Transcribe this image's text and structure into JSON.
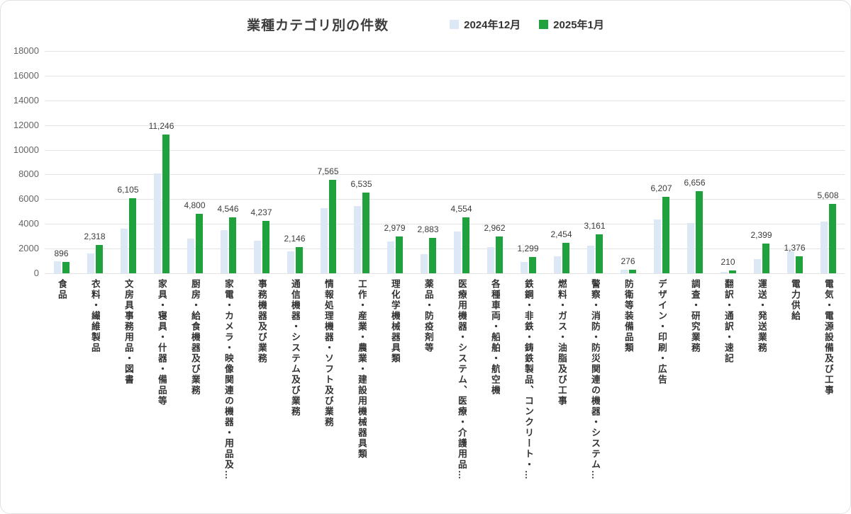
{
  "header": {
    "title": "業種カテゴリ別の件数"
  },
  "legend": [
    {
      "label": "2024年12月",
      "color": "#dce8f5"
    },
    {
      "label": "2025年1月",
      "color": "#1fa23e"
    }
  ],
  "chart_data": {
    "type": "bar",
    "title": "業種カテゴリ別の件数",
    "xlabel": "",
    "ylabel": "",
    "ylim": [
      0,
      18000
    ],
    "y_ticks": [
      0,
      2000,
      4000,
      6000,
      8000,
      10000,
      12000,
      14000,
      16000,
      18000
    ],
    "grid": true,
    "legend_position": "top",
    "categories": [
      "食品",
      "衣料・繊維製品",
      "文房具事務用品・図書",
      "家具・寝具・什器・備品等",
      "厨房・給食機器及び業務",
      "家電・カメラ・映像関連の機器・用品及…",
      "事務機器及び業務",
      "通信機器・システム及び業務",
      "情報処理機器・ソフト及び業務",
      "工作・産業・農業・建設用機械器具類",
      "理化学機械器具類",
      "薬品・防疫剤等",
      "医療用機器・システム、医療・介護用品…",
      "各種車両・船舶・航空機",
      "鉄鋼・非鉄・鋳鉄製品、コンクリート・…",
      "燃料・ガス・油脂及び工事",
      "警察・消防・防災関連の機器・システム…",
      "防衛等装備品類",
      "デザイン・印刷・広告",
      "調査・研究業務",
      "翻訳・通訳・速記",
      "運送・発送業務",
      "電力供給",
      "電気・電源設備及び工事"
    ],
    "series": [
      {
        "name": "2024年12月",
        "color": "#dce8f5",
        "data_labels": false,
        "values": [
          1000,
          1620,
          3620,
          8100,
          2820,
          3480,
          2650,
          1760,
          5300,
          5420,
          2580,
          1540,
          3390,
          2100,
          930,
          1400,
          2240,
          290,
          4330,
          4080,
          110,
          1150,
          1760,
          4180
        ]
      },
      {
        "name": "2025年1月",
        "color": "#1fa23e",
        "data_labels": true,
        "values": [
          896,
          2318,
          6105,
          11246,
          4800,
          4546,
          4237,
          2146,
          7565,
          6535,
          2979,
          2883,
          4554,
          2962,
          1299,
          2454,
          3161,
          276,
          6207,
          6656,
          210,
          2399,
          1376,
          5608
        ]
      }
    ]
  }
}
